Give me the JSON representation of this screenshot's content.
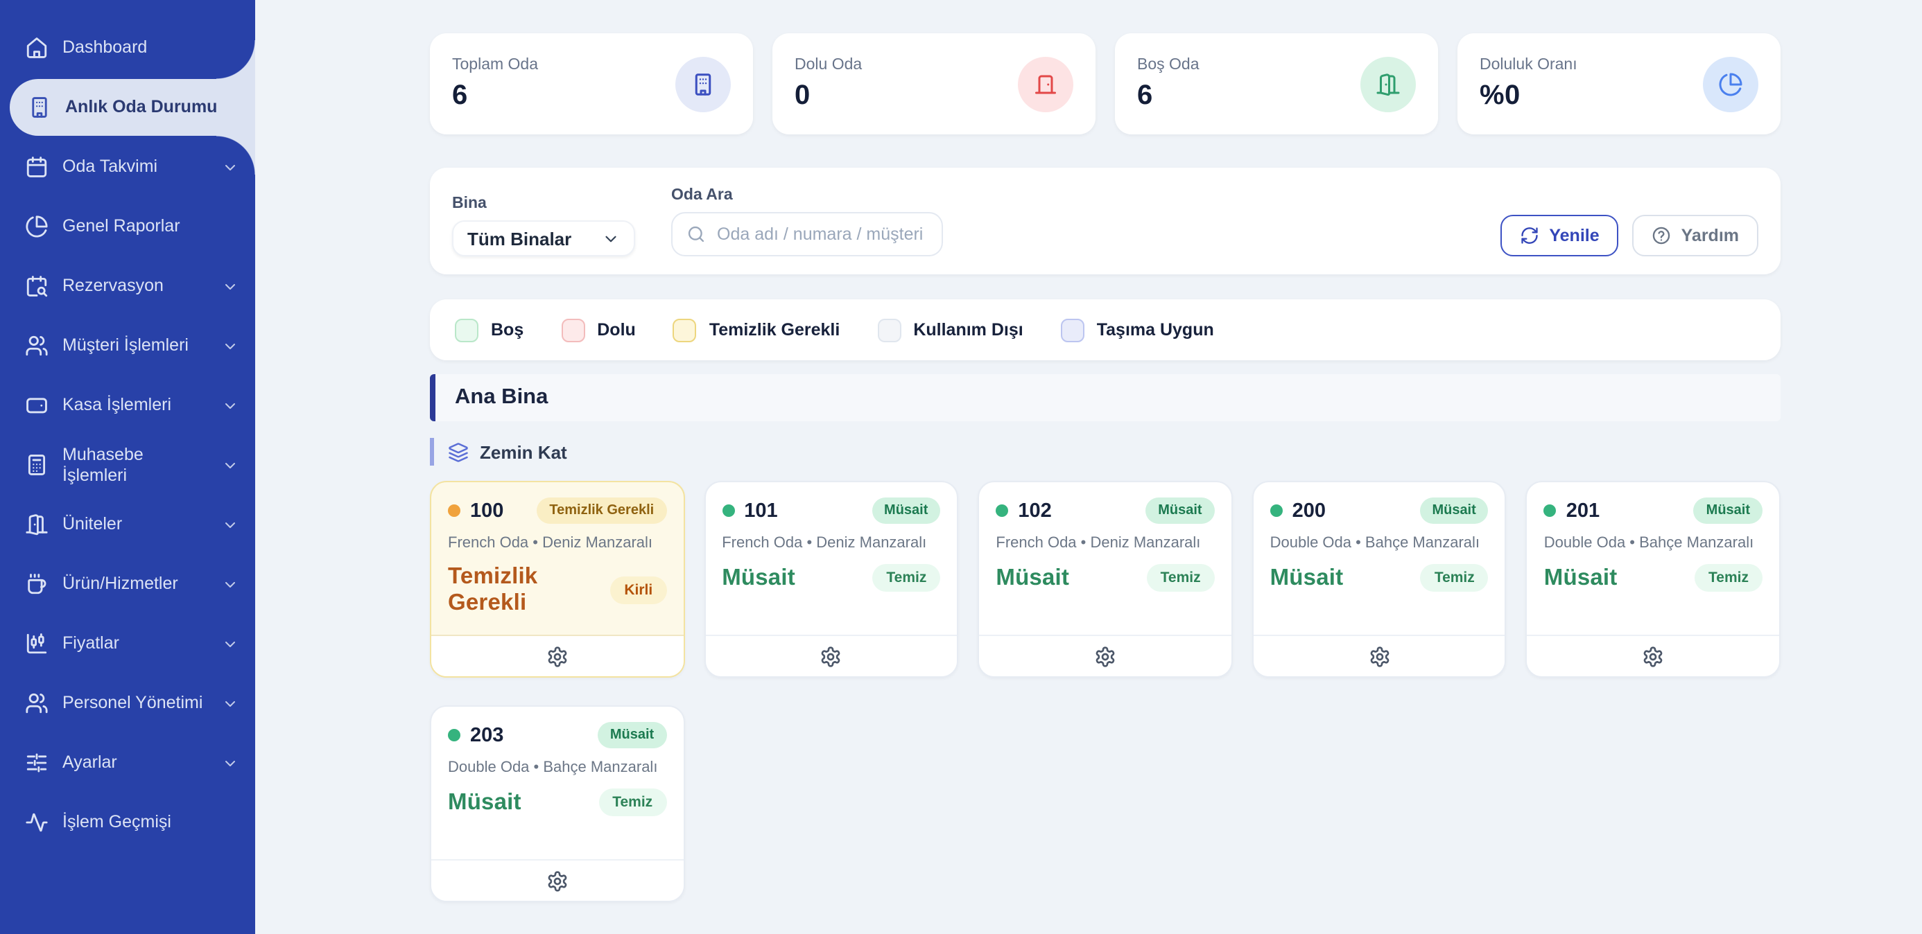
{
  "colors": {
    "sidebar_bg": "#2841a8",
    "sidebar_active_bg": "#dbe2f2",
    "page_bg": "#eff3f8",
    "accent_blue": "#3346b8",
    "available_green": "#2e8b5f",
    "cleaning_amber": "#b4591c"
  },
  "sidebar": {
    "items": [
      {
        "label": "Dashboard",
        "icon": "home-icon",
        "active": false,
        "expandable": false
      },
      {
        "label": "Anlık Oda Durumu",
        "icon": "building-icon",
        "active": true,
        "expandable": false
      },
      {
        "label": "Oda Takvimi",
        "icon": "calendar-icon",
        "active": false,
        "expandable": true
      },
      {
        "label": "Genel Raporlar",
        "icon": "pie-chart-icon",
        "active": false,
        "expandable": false
      },
      {
        "label": "Rezervasyon",
        "icon": "calendar-search-icon",
        "active": false,
        "expandable": true
      },
      {
        "label": "Müşteri İşlemleri",
        "icon": "users-icon",
        "active": false,
        "expandable": true
      },
      {
        "label": "Kasa İşlemleri",
        "icon": "wallet-icon",
        "active": false,
        "expandable": true
      },
      {
        "label": "Muhasebe İşlemleri",
        "icon": "calculator-icon",
        "active": false,
        "expandable": true
      },
      {
        "label": "Üniteler",
        "icon": "door-open-icon",
        "active": false,
        "expandable": true
      },
      {
        "label": "Ürün/Hizmetler",
        "icon": "coffee-icon",
        "active": false,
        "expandable": true
      },
      {
        "label": "Fiyatlar",
        "icon": "candlestick-icon",
        "active": false,
        "expandable": true
      },
      {
        "label": "Personel Yönetimi",
        "icon": "users-icon",
        "active": false,
        "expandable": true
      },
      {
        "label": "Ayarlar",
        "icon": "sliders-icon",
        "active": false,
        "expandable": true
      },
      {
        "label": "İşlem Geçmişi",
        "icon": "activity-icon",
        "active": false,
        "expandable": false
      }
    ]
  },
  "stats": [
    {
      "label": "Toplam Oda",
      "value": "6",
      "icon": "building-icon",
      "theme": "indigo"
    },
    {
      "label": "Dolu Oda",
      "value": "0",
      "icon": "door-closed-icon",
      "theme": "red"
    },
    {
      "label": "Boş Oda",
      "value": "6",
      "icon": "door-open-icon",
      "theme": "green"
    },
    {
      "label": "Doluluk Oranı",
      "value": "%0",
      "icon": "pie-chart-icon",
      "theme": "blue"
    }
  ],
  "filters": {
    "building_label": "Bina",
    "building_value": "Tüm Binalar",
    "search_label": "Oda Ara",
    "search_placeholder": "Oda adı / numara / müşteri",
    "refresh_label": "Yenile",
    "help_label": "Yardım"
  },
  "legend": [
    {
      "label": "Boş",
      "theme": "green"
    },
    {
      "label": "Dolu",
      "theme": "red"
    },
    {
      "label": "Temizlik Gerekli",
      "theme": "yellow"
    },
    {
      "label": "Kullanım Dışı",
      "theme": "gray"
    },
    {
      "label": "Taşıma Uygun",
      "theme": "indigo"
    }
  ],
  "building_section": {
    "name": "Ana Bina",
    "floors": [
      {
        "name": "Zemin Kat",
        "rooms": [
          {
            "number": "100",
            "badge": "Temizlik Gerekli",
            "type": "French Oda • Deniz Manzaralı",
            "status": "Temizlik Gerekli",
            "chip": "Kirli",
            "theme": "cleaning"
          },
          {
            "number": "101",
            "badge": "Müsait",
            "type": "French Oda • Deniz Manzaralı",
            "status": "Müsait",
            "chip": "Temiz",
            "theme": "available"
          },
          {
            "number": "102",
            "badge": "Müsait",
            "type": "French Oda • Deniz Manzaralı",
            "status": "Müsait",
            "chip": "Temiz",
            "theme": "available"
          },
          {
            "number": "200",
            "badge": "Müsait",
            "type": "Double Oda • Bahçe Manzaralı",
            "status": "Müsait",
            "chip": "Temiz",
            "theme": "available"
          },
          {
            "number": "201",
            "badge": "Müsait",
            "type": "Double Oda • Bahçe Manzaralı",
            "status": "Müsait",
            "chip": "Temiz",
            "theme": "available"
          },
          {
            "number": "203",
            "badge": "Müsait",
            "type": "Double Oda • Bahçe Manzaralı",
            "status": "Müsait",
            "chip": "Temiz",
            "theme": "available"
          }
        ]
      }
    ]
  }
}
